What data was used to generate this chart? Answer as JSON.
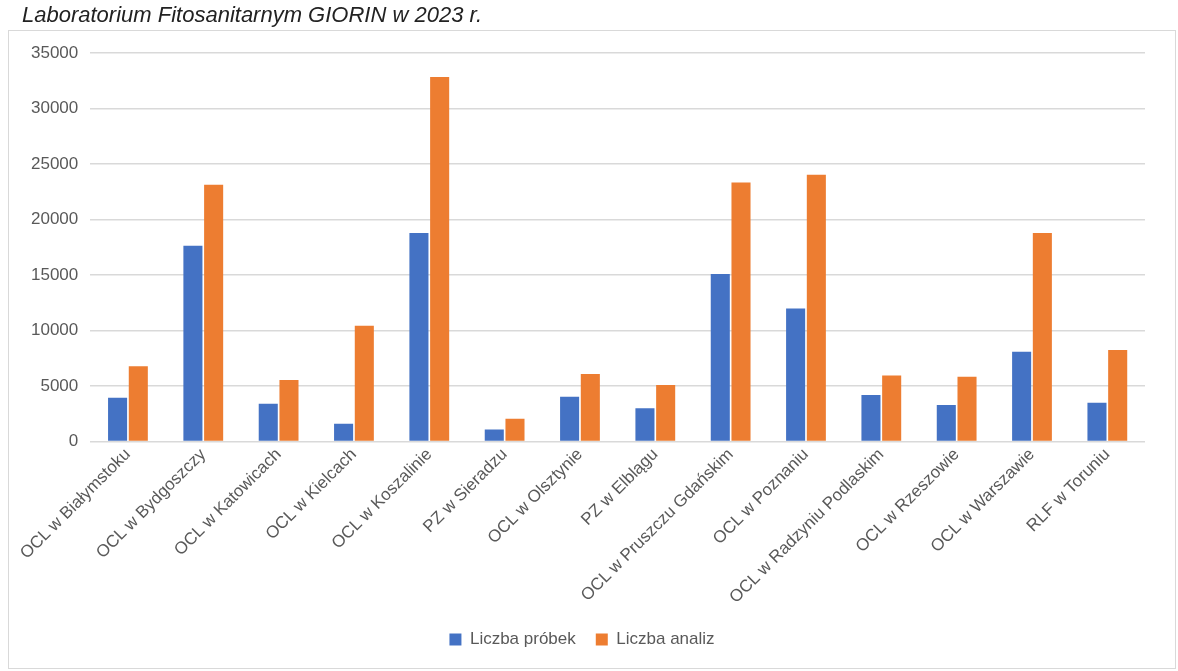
{
  "chart_data": {
    "type": "bar",
    "title": "Laboratorium Fitosanitarnym GIORIN w 2023 r.",
    "categories": [
      "OCL w Białymstoku",
      "OCL w Bydgoszczy",
      "OCL w Katowicach",
      "OCL w Kielcach",
      "OCL w Koszalinie",
      "PZ w Sieradzu",
      "OCL w Olsztynie",
      "PZ w Elblągu",
      "OCL w Pruszczu Gdańskim",
      "OCL w Poznaniu",
      "OCL w Radzyniu Podlaskim",
      "OCL w Rzeszowie",
      "OCL w Warszawie",
      "RLF w Toruniu"
    ],
    "series": [
      {
        "name": "Liczba próbek",
        "color": "#4472c4",
        "values": [
          3950,
          17650,
          3400,
          1600,
          18800,
          1100,
          4050,
          3000,
          15100,
          12000,
          4200,
          3300,
          8100,
          3500
        ]
      },
      {
        "name": "Liczba analiz",
        "color": "#ed7d31",
        "values": [
          6800,
          23150,
          5550,
          10450,
          32850,
          2050,
          6100,
          5100,
          23350,
          24050,
          5950,
          5850,
          18800,
          8250
        ]
      }
    ],
    "ylim": [
      0,
      35000
    ],
    "yticks": [
      0,
      5000,
      10000,
      15000,
      20000,
      25000,
      30000,
      35000
    ],
    "grid": "y",
    "legend": "bottom"
  }
}
